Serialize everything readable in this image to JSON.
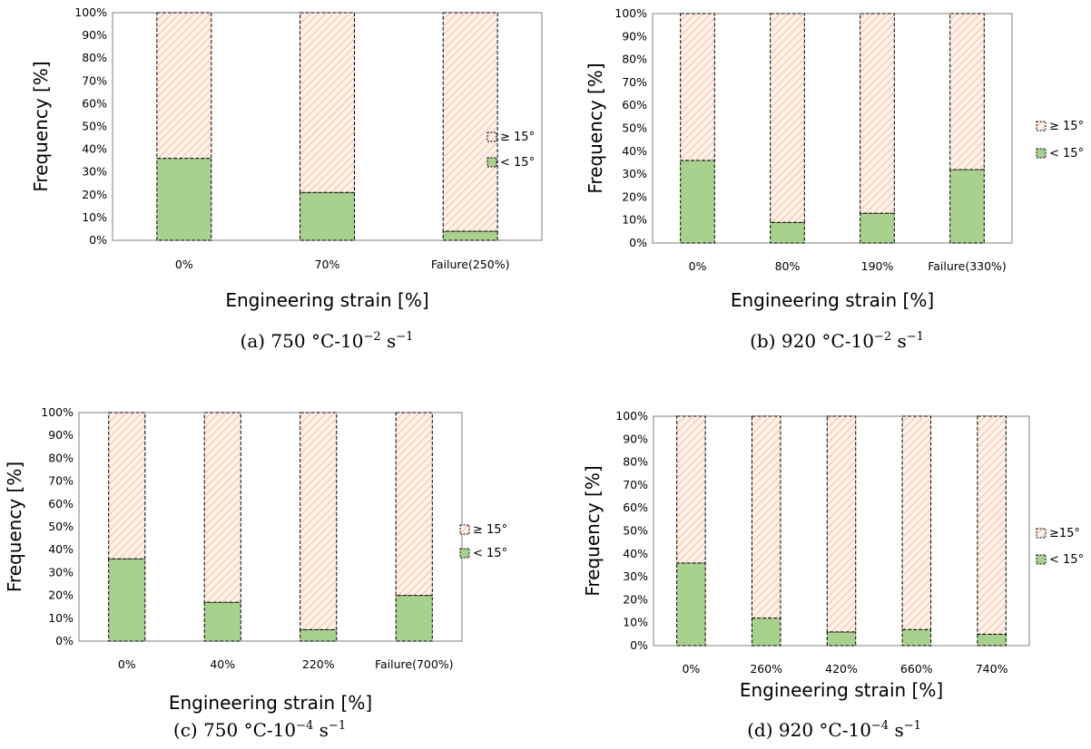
{
  "chart_data": [
    {
      "type": "bar",
      "stacked": true,
      "categories": [
        "0%",
        "70%",
        "Failure(250%)"
      ],
      "series": [
        {
          "name": "< 15°",
          "values": [
            36,
            21,
            4
          ],
          "color": "#a9d18e",
          "pattern": "solid"
        },
        {
          "name": "≥ 15°",
          "values": [
            64,
            79,
            96
          ],
          "color": "#f4b183",
          "pattern": "hatched"
        }
      ],
      "ylabel": "Frequency [%]",
      "xlabel": "Engineering strain [%]",
      "ylim": [
        0,
        100
      ],
      "yticks": [
        "0%",
        "10%",
        "20%",
        "30%",
        "40%",
        "50%",
        "60%",
        "70%",
        "80%",
        "90%",
        "100%"
      ],
      "legend_labels": [
        "≥ 15°",
        "< 15°"
      ],
      "legend_position": "right",
      "grid": false,
      "caption_prefix": "(a)  750 °C-10",
      "caption_exp1": "−2",
      "caption_mid": " s",
      "caption_exp2": "−1"
    },
    {
      "type": "bar",
      "stacked": true,
      "categories": [
        "0%",
        "80%",
        "190%",
        "Failure(330%)"
      ],
      "series": [
        {
          "name": "< 15°",
          "values": [
            36,
            9,
            13,
            32
          ],
          "color": "#a9d18e",
          "pattern": "solid"
        },
        {
          "name": "≥ 15°",
          "values": [
            64,
            91,
            87,
            68
          ],
          "color": "#f4b183",
          "pattern": "hatched"
        }
      ],
      "ylabel": "Frequency [%]",
      "xlabel": "Engineering strain [%]",
      "ylim": [
        0,
        100
      ],
      "yticks": [
        "0%",
        "10%",
        "20%",
        "30%",
        "40%",
        "50%",
        "60%",
        "70%",
        "80%",
        "90%",
        "100%"
      ],
      "legend_labels": [
        "≥ 15°",
        "< 15°"
      ],
      "legend_position": "right",
      "grid": false,
      "caption_prefix": "(b)  920 °C-10",
      "caption_exp1": "−2",
      "caption_mid": " s",
      "caption_exp2": "−1"
    },
    {
      "type": "bar",
      "stacked": true,
      "categories": [
        "0%",
        "40%",
        "220%",
        "Failure(700%)"
      ],
      "series": [
        {
          "name": "< 15°",
          "values": [
            36,
            17,
            5,
            20
          ],
          "color": "#a9d18e",
          "pattern": "solid"
        },
        {
          "name": "≥ 15°",
          "values": [
            64,
            83,
            95,
            80
          ],
          "color": "#f4b183",
          "pattern": "hatched"
        }
      ],
      "ylabel": "Frequency [%]",
      "xlabel": "Engineering strain [%]",
      "ylim": [
        0,
        100
      ],
      "yticks": [
        "0%",
        "10%",
        "20%",
        "30%",
        "40%",
        "50%",
        "60%",
        "70%",
        "80%",
        "90%",
        "100%"
      ],
      "legend_labels": [
        "≥ 15°",
        "< 15°"
      ],
      "legend_position": "right",
      "grid": false,
      "caption_prefix": "(c)  750 °C-10",
      "caption_exp1": "−4",
      "caption_mid": " s",
      "caption_exp2": "−1"
    },
    {
      "type": "bar",
      "stacked": true,
      "categories": [
        "0%",
        "260%",
        "420%",
        "660%",
        "740%"
      ],
      "series": [
        {
          "name": "< 15°",
          "values": [
            36,
            12,
            6,
            7,
            5
          ],
          "color": "#a9d18e",
          "pattern": "solid"
        },
        {
          "name": "≥ 15°",
          "values": [
            64,
            88,
            94,
            93,
            95
          ],
          "color": "#f4b183",
          "pattern": "hatched"
        }
      ],
      "ylabel": "Frequency [%]",
      "xlabel": "Engineering strain [%]",
      "ylim": [
        0,
        100
      ],
      "yticks": [
        "0%",
        "10%",
        "20%",
        "30%",
        "40%",
        "50%",
        "60%",
        "70%",
        "80%",
        "90%",
        "100%"
      ],
      "legend_labels": [
        "≥15°",
        "< 15°"
      ],
      "legend_position": "right",
      "grid": false,
      "caption_prefix": "(d)  920 °C-10",
      "caption_exp1": "−4",
      "caption_mid": " s",
      "caption_exp2": "−1"
    }
  ]
}
